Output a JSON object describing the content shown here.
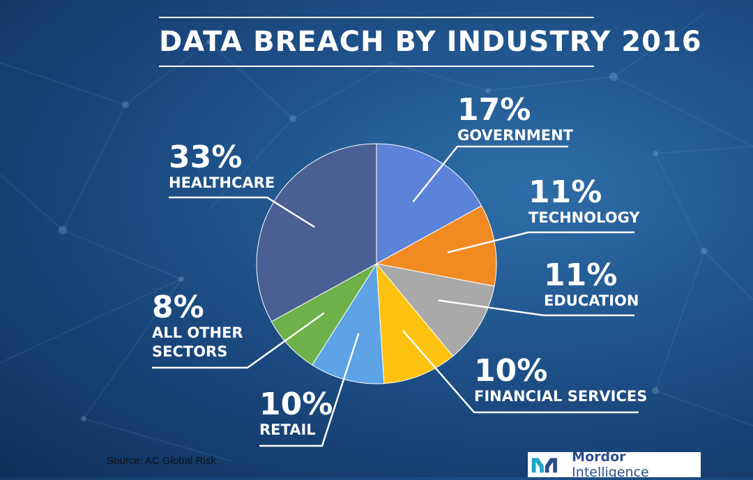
{
  "title": "DATA BREACH BY INDUSTRY 2016",
  "source": "Source: AC Global Risk",
  "logo": {
    "brand": "Mordor",
    "suffix": " Intelligence"
  },
  "chart_data": {
    "type": "pie",
    "title": "DATA BREACH BY INDUSTRY 2016",
    "slices": [
      {
        "label": "GOVERNMENT",
        "value": 17,
        "display": "17%",
        "color": "#5b83d8"
      },
      {
        "label": "TECHNOLOGY",
        "value": 11,
        "display": "11%",
        "color": "#f28a24"
      },
      {
        "label": "EDUCATION",
        "value": 11,
        "display": "11%",
        "color": "#a9a9a9"
      },
      {
        "label": "FINANCIAL SERVICES",
        "value": 10,
        "display": "10%",
        "color": "#fdc20f"
      },
      {
        "label": "RETAIL",
        "value": 10,
        "display": "10%",
        "color": "#5da3e5"
      },
      {
        "label": "ALL OTHER SECTORS",
        "value": 8,
        "display": "8%",
        "color": "#6db14a"
      },
      {
        "label": "HEALTHCARE",
        "value": 33,
        "display": "33%",
        "color": "#4a5f93"
      }
    ]
  }
}
